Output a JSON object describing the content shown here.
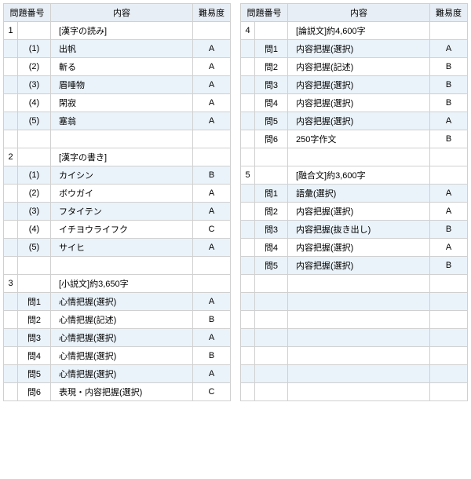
{
  "headers": {
    "num": "問題番号",
    "content": "内容",
    "diff": "難易度"
  },
  "left": [
    {
      "m": "1",
      "s": "",
      "c": "[漢字の読み]",
      "d": "",
      "shade": "even"
    },
    {
      "m": "",
      "s": "(1)",
      "c": "出帆",
      "d": "A",
      "shade": "odd"
    },
    {
      "m": "",
      "s": "(2)",
      "c": "斬る",
      "d": "A",
      "shade": "even"
    },
    {
      "m": "",
      "s": "(3)",
      "c": "眉唾物",
      "d": "A",
      "shade": "odd"
    },
    {
      "m": "",
      "s": "(4)",
      "c": "閑寂",
      "d": "A",
      "shade": "even"
    },
    {
      "m": "",
      "s": "(5)",
      "c": "塞翁",
      "d": "A",
      "shade": "odd"
    },
    {
      "m": "",
      "s": "",
      "c": "",
      "d": "",
      "shade": "even"
    },
    {
      "m": "2",
      "s": "",
      "c": "[漢字の書き]",
      "d": "",
      "shade": "even"
    },
    {
      "m": "",
      "s": "(1)",
      "c": "カイシン",
      "d": "B",
      "shade": "odd"
    },
    {
      "m": "",
      "s": "(2)",
      "c": "ボウガイ",
      "d": "A",
      "shade": "even"
    },
    {
      "m": "",
      "s": "(3)",
      "c": "フタイテン",
      "d": "A",
      "shade": "odd"
    },
    {
      "m": "",
      "s": "(4)",
      "c": "イチヨウライフク",
      "d": "C",
      "shade": "even"
    },
    {
      "m": "",
      "s": "(5)",
      "c": "サイヒ",
      "d": "A",
      "shade": "odd"
    },
    {
      "m": "",
      "s": "",
      "c": "",
      "d": "",
      "shade": "even"
    },
    {
      "m": "3",
      "s": "",
      "c": "[小説文]約3,650字",
      "d": "",
      "shade": "even"
    },
    {
      "m": "",
      "s": "問1",
      "c": "心情把握(選択)",
      "d": "A",
      "shade": "odd"
    },
    {
      "m": "",
      "s": "問2",
      "c": "心情把握(記述)",
      "d": "B",
      "shade": "even"
    },
    {
      "m": "",
      "s": "問3",
      "c": "心情把握(選択)",
      "d": "A",
      "shade": "odd"
    },
    {
      "m": "",
      "s": "問4",
      "c": "心情把握(選択)",
      "d": "B",
      "shade": "even"
    },
    {
      "m": "",
      "s": "問5",
      "c": "心情把握(選択)",
      "d": "A",
      "shade": "odd"
    },
    {
      "m": "",
      "s": "問6",
      "c": "表現・内容把握(選択)",
      "d": "C",
      "shade": "even"
    }
  ],
  "right": [
    {
      "m": "4",
      "s": "",
      "c": "[論説文]約4,600字",
      "d": "",
      "shade": "even"
    },
    {
      "m": "",
      "s": "問1",
      "c": "内容把握(選択)",
      "d": "A",
      "shade": "odd"
    },
    {
      "m": "",
      "s": "問2",
      "c": "内容把握(記述)",
      "d": "B",
      "shade": "even"
    },
    {
      "m": "",
      "s": "問3",
      "c": "内容把握(選択)",
      "d": "B",
      "shade": "odd"
    },
    {
      "m": "",
      "s": "問4",
      "c": "内容把握(選択)",
      "d": "B",
      "shade": "even"
    },
    {
      "m": "",
      "s": "問5",
      "c": "内容把握(選択)",
      "d": "A",
      "shade": "odd"
    },
    {
      "m": "",
      "s": "問6",
      "c": "250字作文",
      "d": "B",
      "shade": "even"
    },
    {
      "m": "",
      "s": "",
      "c": "",
      "d": "",
      "shade": "even"
    },
    {
      "m": "5",
      "s": "",
      "c": "[融合文]約3,600字",
      "d": "",
      "shade": "even"
    },
    {
      "m": "",
      "s": "問1",
      "c": "語彙(選択)",
      "d": "A",
      "shade": "odd"
    },
    {
      "m": "",
      "s": "問2",
      "c": "内容把握(選択)",
      "d": "A",
      "shade": "even"
    },
    {
      "m": "",
      "s": "問3",
      "c": "内容把握(抜き出し)",
      "d": "B",
      "shade": "odd"
    },
    {
      "m": "",
      "s": "問4",
      "c": "内容把握(選択)",
      "d": "A",
      "shade": "even"
    },
    {
      "m": "",
      "s": "問5",
      "c": "内容把握(選択)",
      "d": "B",
      "shade": "odd"
    },
    {
      "m": "",
      "s": "",
      "c": "",
      "d": "",
      "shade": "even"
    },
    {
      "m": "",
      "s": "",
      "c": "",
      "d": "",
      "shade": "odd"
    },
    {
      "m": "",
      "s": "",
      "c": "",
      "d": "",
      "shade": "even"
    },
    {
      "m": "",
      "s": "",
      "c": "",
      "d": "",
      "shade": "odd"
    },
    {
      "m": "",
      "s": "",
      "c": "",
      "d": "",
      "shade": "even"
    },
    {
      "m": "",
      "s": "",
      "c": "",
      "d": "",
      "shade": "odd"
    },
    {
      "m": "",
      "s": "",
      "c": "",
      "d": "",
      "shade": "even"
    }
  ]
}
